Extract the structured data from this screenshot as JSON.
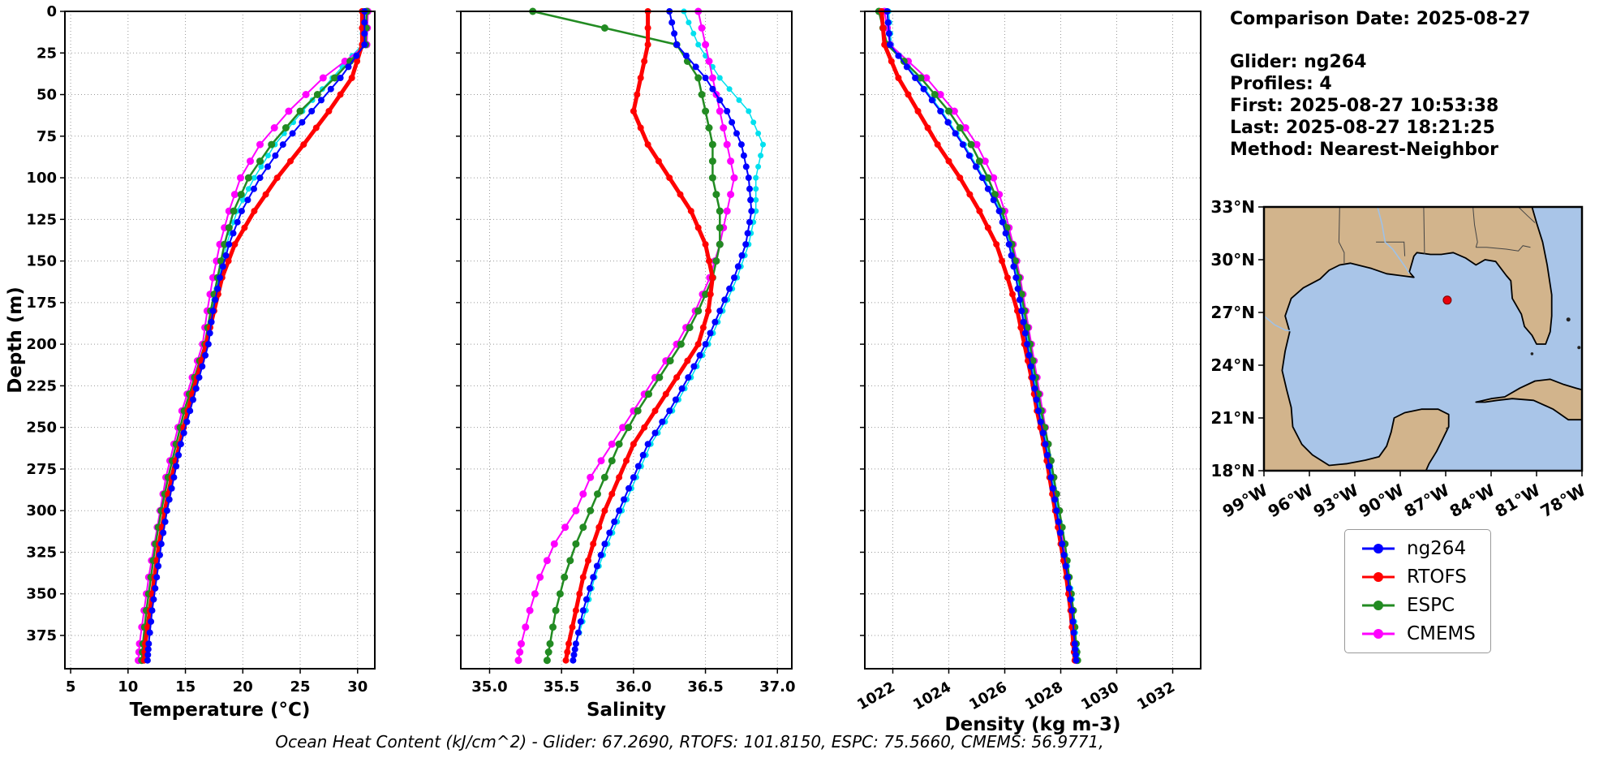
{
  "info": {
    "comparison_date": "Comparison Date: 2025-08-27",
    "glider": "Glider: ng264",
    "profiles": "Profiles: 4",
    "first": "First: 2025-08-27 10:53:38",
    "last": "Last: 2025-08-27 18:21:25",
    "method": "Method: Nearest-Neighbor"
  },
  "footer": "Ocean Heat Content (kJ/cm^2) - Glider: 67.2690,  RTOFS: 101.8150,  ESPC: 75.5660,  CMEMS: 56.9771,",
  "legend": {
    "entries": [
      {
        "label": "ng264",
        "color": "#0000ff"
      },
      {
        "label": "RTOFS",
        "color": "#ff0000"
      },
      {
        "label": "ESPC",
        "color": "#228b22"
      },
      {
        "label": "CMEMS",
        "color": "#ff00ff"
      }
    ]
  },
  "map": {
    "extent": {
      "lon_w": [
        99,
        78
      ],
      "lat": [
        18,
        33
      ]
    },
    "lon_ticks": [
      99,
      96,
      93,
      90,
      87,
      84,
      81,
      78
    ],
    "lon_labels": [
      "99°W",
      "96°W",
      "93°W",
      "90°W",
      "87°W",
      "84°W",
      "81°W",
      "78°W"
    ],
    "lat_ticks": [
      33,
      30,
      27,
      24,
      21,
      18
    ],
    "lat_labels": [
      "33°N",
      "30°N",
      "27°N",
      "24°N",
      "21°N",
      "18°N"
    ],
    "glider_location": {
      "lon_w": 86.9,
      "lat": 27.7
    },
    "land_color": "#d2b48c",
    "water_color": "#a9c5e8",
    "marker_color": "#e8000b"
  },
  "chart_data": [
    {
      "type": "line",
      "panel_name": "temperature-panel",
      "xlabel": "Temperature (°C)",
      "ylabel": "Depth (m)",
      "xlim": [
        4.5,
        31.5
      ],
      "ylim": [
        0,
        395
      ],
      "y_inverted": true,
      "grid": true,
      "xticks": [
        5,
        10,
        15,
        20,
        25,
        30
      ],
      "xtick_labels": [
        "5",
        "10",
        "15",
        "20",
        "25",
        "30"
      ],
      "yticks": [
        0,
        25,
        50,
        75,
        100,
        125,
        150,
        175,
        200,
        225,
        250,
        275,
        300,
        325,
        350,
        375
      ],
      "ytick_labels": [
        "0",
        "25",
        "50",
        "75",
        "100",
        "125",
        "150",
        "175",
        "200",
        "225",
        "250",
        "275",
        "300",
        "325",
        "350",
        "375"
      ],
      "depths": [
        0,
        20,
        40,
        60,
        80,
        100,
        120,
        140,
        160,
        180,
        200,
        220,
        240,
        260,
        280,
        300,
        320,
        340,
        360,
        380,
        390
      ],
      "series": [
        {
          "name": "glider-raw-points",
          "color": "#00e0ee",
          "lw": 1.5,
          "marker_r": 3.5,
          "subdiv": 3,
          "values": [
            30.5,
            30.4,
            27.8,
            25.2,
            22.8,
            21.0,
            19.5,
            18.6,
            17.9,
            17.3,
            16.9,
            16.1,
            15.3,
            14.5,
            13.9,
            13.3,
            12.8,
            12.4,
            12.0,
            11.8,
            11.7
          ]
        },
        {
          "name": "CMEMS",
          "color": "#ff00ff",
          "lw": 2,
          "marker_r": 4.5,
          "subdiv": 2,
          "values": [
            30.9,
            30.8,
            27.0,
            24.0,
            21.5,
            19.8,
            18.8,
            18.0,
            17.4,
            16.9,
            16.5,
            15.6,
            14.7,
            14.0,
            13.3,
            12.8,
            12.3,
            11.8,
            11.4,
            11.0,
            10.9
          ]
        },
        {
          "name": "ESPC",
          "color": "#228b22",
          "lw": 2.5,
          "marker_r": 4.5,
          "subdiv": 2,
          "values": [
            30.8,
            30.7,
            28.0,
            25.0,
            22.5,
            20.5,
            19.2,
            18.4,
            17.8,
            17.2,
            16.7,
            15.8,
            14.9,
            14.2,
            13.5,
            12.9,
            12.4,
            12.0,
            11.6,
            11.3,
            11.2
          ]
        },
        {
          "name": "RTOFS",
          "color": "#ff0000",
          "lw": 5,
          "marker_r": 4,
          "subdiv": 2,
          "values": [
            30.4,
            30.4,
            29.5,
            27.5,
            25.3,
            23.0,
            21.0,
            19.3,
            18.2,
            17.5,
            16.8,
            16.0,
            15.2,
            14.5,
            13.8,
            13.2,
            12.7,
            12.3,
            11.9,
            11.5,
            11.4
          ]
        },
        {
          "name": "ng264",
          "color": "#0000ff",
          "lw": 2,
          "marker_r": 4,
          "subdiv": 3,
          "values": [
            30.6,
            30.6,
            28.5,
            26.0,
            23.5,
            21.5,
            19.9,
            18.8,
            18.0,
            17.4,
            17.0,
            16.2,
            15.4,
            14.6,
            14.0,
            13.4,
            12.9,
            12.5,
            12.1,
            11.8,
            11.7
          ]
        }
      ]
    },
    {
      "type": "line",
      "panel_name": "salinity-panel",
      "xlabel": "Salinity",
      "xlim": [
        34.8,
        37.1
      ],
      "ylim": [
        0,
        395
      ],
      "y_inverted": true,
      "grid": true,
      "xticks": [
        35.0,
        35.5,
        36.0,
        36.5,
        37.0
      ],
      "xtick_labels": [
        "35.0",
        "35.5",
        "36.0",
        "36.5",
        "37.0"
      ],
      "yticks": [
        0,
        25,
        50,
        75,
        100,
        125,
        150,
        175,
        200,
        225,
        250,
        275,
        300,
        325,
        350,
        375
      ],
      "ytick_labels": [
        "0",
        "25",
        "50",
        "75",
        "100",
        "125",
        "150",
        "175",
        "200",
        "225",
        "250",
        "275",
        "300",
        "325",
        "350",
        "375"
      ],
      "depths": [
        0,
        20,
        40,
        60,
        80,
        100,
        120,
        140,
        160,
        180,
        200,
        220,
        240,
        260,
        280,
        300,
        320,
        340,
        360,
        380,
        390
      ],
      "series": [
        {
          "name": "glider-raw-points",
          "color": "#00e0ee",
          "lw": 1.5,
          "marker_r": 3.5,
          "subdiv": 3,
          "values": [
            36.35,
            36.45,
            36.6,
            36.8,
            36.9,
            36.85,
            36.85,
            36.8,
            36.72,
            36.62,
            36.52,
            36.4,
            36.27,
            36.12,
            36.02,
            35.92,
            35.82,
            35.73,
            35.67,
            35.6,
            35.58
          ]
        },
        {
          "name": "CMEMS",
          "color": "#ff00ff",
          "lw": 2,
          "marker_r": 4.5,
          "subdiv": 2,
          "values": [
            36.45,
            36.5,
            36.55,
            36.6,
            36.65,
            36.7,
            36.65,
            36.6,
            36.53,
            36.43,
            36.3,
            36.15,
            36.0,
            35.85,
            35.7,
            35.6,
            35.45,
            35.35,
            35.28,
            35.22,
            35.2
          ]
        },
        {
          "name": "ESPC",
          "color": "#228b22",
          "lw": 2.5,
          "marker_r": 4.5,
          "subdiv": 2,
          "values": [
            35.3,
            36.3,
            36.45,
            36.5,
            36.55,
            36.55,
            36.6,
            36.6,
            36.55,
            36.45,
            36.33,
            36.18,
            36.03,
            35.9,
            35.8,
            35.7,
            35.6,
            35.52,
            35.46,
            35.42,
            35.4
          ]
        },
        {
          "name": "RTOFS",
          "color": "#ff0000",
          "lw": 5,
          "marker_r": 4,
          "subdiv": 2,
          "values": [
            36.1,
            36.1,
            36.05,
            36.0,
            36.1,
            36.25,
            36.4,
            36.5,
            36.55,
            36.52,
            36.45,
            36.3,
            36.15,
            36.0,
            35.9,
            35.8,
            35.72,
            35.65,
            35.6,
            35.55,
            35.53
          ]
        },
        {
          "name": "ng264",
          "color": "#0000ff",
          "lw": 2,
          "marker_r": 4,
          "subdiv": 3,
          "values": [
            36.25,
            36.3,
            36.5,
            36.65,
            36.75,
            36.8,
            36.82,
            36.78,
            36.7,
            36.6,
            36.5,
            36.38,
            36.25,
            36.1,
            36.0,
            35.9,
            35.8,
            35.72,
            35.65,
            35.6,
            35.58
          ]
        }
      ]
    },
    {
      "type": "line",
      "panel_name": "density-panel",
      "xlabel": "Density (kg m-3)",
      "xlim": [
        1021,
        1033
      ],
      "ylim": [
        0,
        395
      ],
      "y_inverted": true,
      "grid": true,
      "xtick_rotation": 30,
      "xticks": [
        1022,
        1024,
        1026,
        1028,
        1030,
        1032
      ],
      "xtick_labels": [
        "1022",
        "1024",
        "1026",
        "1028",
        "1030",
        "1032"
      ],
      "yticks": [
        0,
        25,
        50,
        75,
        100,
        125,
        150,
        175,
        200,
        225,
        250,
        275,
        300,
        325,
        350,
        375
      ],
      "ytick_labels": [
        "0",
        "25",
        "50",
        "75",
        "100",
        "125",
        "150",
        "175",
        "200",
        "225",
        "250",
        "275",
        "300",
        "325",
        "350",
        "375"
      ],
      "depths": [
        0,
        20,
        40,
        60,
        80,
        100,
        120,
        140,
        160,
        180,
        200,
        220,
        240,
        260,
        280,
        300,
        320,
        340,
        360,
        380,
        390
      ],
      "series": [
        {
          "name": "glider-raw-points",
          "color": "#00e0ee",
          "lw": 1.5,
          "marker_r": 3.5,
          "subdiv": 3,
          "values": [
            1021.85,
            1021.95,
            1022.85,
            1023.75,
            1024.55,
            1025.25,
            1025.85,
            1026.2,
            1026.45,
            1026.65,
            1026.85,
            1027.05,
            1027.25,
            1027.5,
            1027.7,
            1027.9,
            1028.1,
            1028.3,
            1028.45,
            1028.55,
            1028.6
          ]
        },
        {
          "name": "CMEMS",
          "color": "#ff00ff",
          "lw": 2,
          "marker_r": 4.5,
          "subdiv": 2,
          "values": [
            1021.7,
            1021.9,
            1023.2,
            1024.2,
            1025.0,
            1025.6,
            1026.0,
            1026.3,
            1026.55,
            1026.75,
            1026.95,
            1027.15,
            1027.35,
            1027.55,
            1027.75,
            1027.95,
            1028.1,
            1028.25,
            1028.4,
            1028.5,
            1028.55
          ]
        },
        {
          "name": "ESPC",
          "color": "#228b22",
          "lw": 2.5,
          "marker_r": 4.5,
          "subdiv": 2,
          "values": [
            1021.5,
            1021.8,
            1023.0,
            1024.0,
            1024.8,
            1025.4,
            1025.9,
            1026.25,
            1026.5,
            1026.7,
            1026.9,
            1027.1,
            1027.3,
            1027.55,
            1027.75,
            1027.95,
            1028.15,
            1028.3,
            1028.45,
            1028.55,
            1028.6
          ]
        },
        {
          "name": "RTOFS",
          "color": "#ff0000",
          "lw": 5,
          "marker_r": 4,
          "subdiv": 2,
          "values": [
            1021.6,
            1021.7,
            1022.2,
            1022.9,
            1023.6,
            1024.4,
            1025.1,
            1025.7,
            1026.1,
            1026.45,
            1026.7,
            1026.95,
            1027.15,
            1027.4,
            1027.6,
            1027.8,
            1028.0,
            1028.2,
            1028.35,
            1028.45,
            1028.5
          ]
        },
        {
          "name": "ng264",
          "color": "#0000ff",
          "lw": 2,
          "marker_r": 4,
          "subdiv": 3,
          "values": [
            1021.8,
            1021.9,
            1022.8,
            1023.7,
            1024.5,
            1025.2,
            1025.8,
            1026.15,
            1026.4,
            1026.6,
            1026.8,
            1027.0,
            1027.2,
            1027.45,
            1027.65,
            1027.85,
            1028.05,
            1028.25,
            1028.4,
            1028.5,
            1028.55
          ]
        }
      ]
    }
  ]
}
